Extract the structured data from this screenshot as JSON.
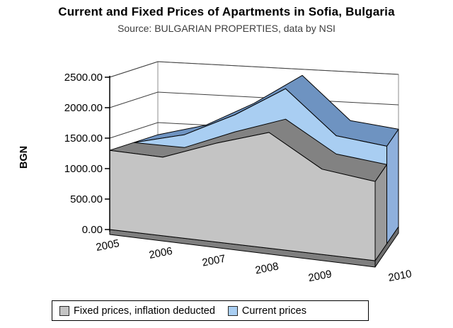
{
  "chart_data": {
    "type": "area",
    "style": "3d-area",
    "title": "Current and Fixed Prices of Apartments in Sofia, Bulgaria",
    "subtitle": "Source: BULGARIAN PROPERTIES, data by NSI",
    "xlabel": "",
    "ylabel": "BGN",
    "ylim": [
      0,
      2500
    ],
    "ytick_step": 500,
    "ytick_labels": [
      "0.00",
      "500.00",
      "1000.00",
      "1500.00",
      "2000.00",
      "2500.00"
    ],
    "grid": true,
    "legend_position": "bottom",
    "background": "#FFFFFF",
    "wall_color": "#FFFFFF",
    "gridline_color": "#404040",
    "floor_colors": {
      "top": "#ABABAB",
      "front": "#7F7F7F",
      "side": "#6F6F6F"
    },
    "categories": [
      "2005",
      "2006",
      "2007",
      "2008",
      "2009",
      "2010"
    ],
    "series": [
      {
        "name": "Fixed prices, inflation deducted",
        "color": "#C4C4C4",
        "shade_top": "#828282",
        "shade_side": "#9A9A9A",
        "depth_row": "front",
        "values": [
          1300,
          1290,
          1620,
          1900,
          1400,
          1300
        ]
      },
      {
        "name": "Current prices",
        "color": "#A9CEF2",
        "shade_top": "#6E93C1",
        "shade_side": "#8FB0DC",
        "depth_row": "back",
        "values": [
          1300,
          1500,
          1900,
          2400,
          1700,
          1600
        ]
      }
    ]
  }
}
